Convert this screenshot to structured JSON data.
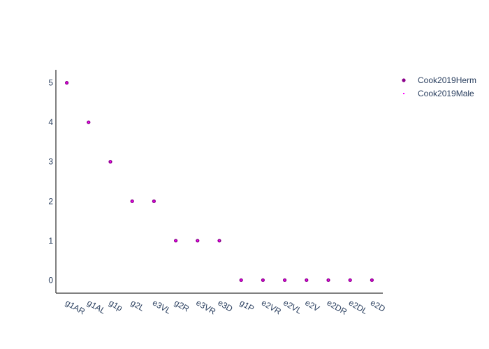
{
  "chart_data": {
    "type": "scatter",
    "title": "",
    "xlabel": "",
    "ylabel": "",
    "categories": [
      "g1AR",
      "g1AL",
      "g1p",
      "g2L",
      "e3VL",
      "g2R",
      "e3VR",
      "e3D",
      "g1P",
      "e2VR",
      "e2VL",
      "e2V",
      "e2DR",
      "e2DL",
      "e2D"
    ],
    "ylim": [
      -0.33,
      5.33
    ],
    "yticks": [
      0,
      1,
      2,
      3,
      4,
      5
    ],
    "grid": false,
    "legend_position": "top-right",
    "series": [
      {
        "name": "Cook2019Herm",
        "color": "#8b008b",
        "marker": "circle",
        "values": [
          5,
          4,
          3,
          2,
          2,
          1,
          1,
          1,
          0,
          0,
          0,
          0,
          0,
          0,
          0
        ]
      },
      {
        "name": "Cook2019Male",
        "color": "#ff00ff",
        "marker": "small-square",
        "values": [
          5,
          4,
          3,
          2,
          2,
          1,
          1,
          1,
          0,
          0,
          0,
          0,
          0,
          0,
          0
        ]
      }
    ]
  }
}
